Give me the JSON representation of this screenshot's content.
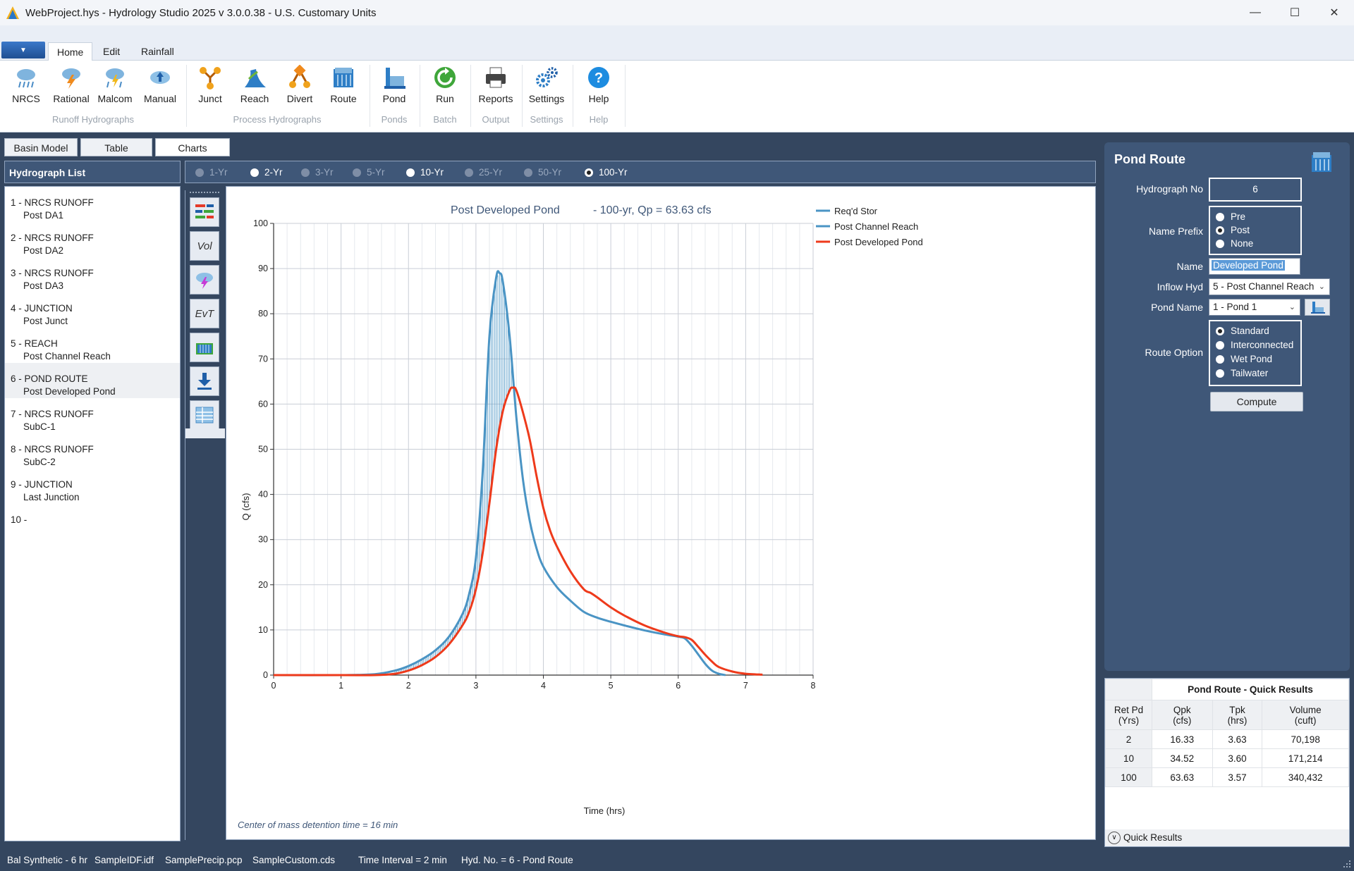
{
  "window": {
    "title": "WebProject.hys - Hydrology Studio 2025 v 3.0.0.38 - U.S. Customary Units",
    "minimize": "—",
    "maximize": "☐",
    "close": "✕"
  },
  "ribbon": {
    "tabs": [
      "Home",
      "Edit",
      "Rainfall"
    ],
    "buttons": {
      "nrcs": "NRCS",
      "rational": "Rational",
      "malcom": "Malcom",
      "manual": "Manual",
      "junct": "Junct",
      "reach": "Reach",
      "divert": "Divert",
      "route": "Route",
      "pond": "Pond",
      "run": "Run",
      "reports": "Reports",
      "settings": "Settings",
      "help": "Help"
    },
    "groups": {
      "runoff": "Runoff Hydrographs",
      "process": "Process Hydrographs",
      "ponds": "Ponds",
      "batch": "Batch",
      "output": "Output",
      "settings": "Settings",
      "help": "Help"
    }
  },
  "view_tabs": [
    "Basin Model",
    "Table",
    "Charts"
  ],
  "hydrograph_list": {
    "title": "Hydrograph List",
    "items": [
      {
        "line1": "1 - NRCS RUNOFF",
        "line2": "Post DA1"
      },
      {
        "line1": "2 - NRCS RUNOFF",
        "line2": "Post DA2"
      },
      {
        "line1": "3 - NRCS RUNOFF",
        "line2": "Post DA3"
      },
      {
        "line1": "4 - JUNCTION",
        "line2": "Post Junct"
      },
      {
        "line1": "5 - REACH",
        "line2": "Post Channel Reach"
      },
      {
        "line1": "6 - POND ROUTE",
        "line2": "Post Developed Pond"
      },
      {
        "line1": "7 - NRCS RUNOFF",
        "line2": "SubC-1"
      },
      {
        "line1": "8 - NRCS RUNOFF",
        "line2": "SubC-2"
      },
      {
        "line1": "9 - JUNCTION",
        "line2": "Last Junction"
      },
      {
        "line1": "10 -",
        "line2": ""
      }
    ]
  },
  "return_periods": [
    {
      "label": "1-Yr",
      "state": "off"
    },
    {
      "label": "2-Yr",
      "state": "on"
    },
    {
      "label": "3-Yr",
      "state": "off"
    },
    {
      "label": "5-Yr",
      "state": "off"
    },
    {
      "label": "10-Yr",
      "state": "on"
    },
    {
      "label": "25-Yr",
      "state": "off"
    },
    {
      "label": "50-Yr",
      "state": "off"
    },
    {
      "label": "100-Yr",
      "state": "selected"
    }
  ],
  "chart_toolbar": {
    "vol": "Vol",
    "evt": "EvT"
  },
  "chart_data": {
    "type": "line",
    "title": "Post Developed Pond",
    "subtitle": "- 100-yr, Qp = 63.63 cfs",
    "xlabel": "Time (hrs)",
    "ylabel": "Q (cfs)",
    "xlim": [
      0,
      8
    ],
    "ylim": [
      0,
      100
    ],
    "xticks": [
      0,
      1,
      2,
      3,
      4,
      5,
      6,
      7,
      8
    ],
    "yticks": [
      0,
      10,
      20,
      30,
      40,
      50,
      60,
      70,
      80,
      90,
      100
    ],
    "grid": true,
    "legend_position": "top-right",
    "annotation": "Center of mass detention time = 16 min",
    "series": [
      {
        "name": "Req'd Stor",
        "color": "#4a94c4",
        "values": []
      },
      {
        "name": "Post Channel Reach",
        "color": "#4a94c4",
        "x": [
          0,
          1,
          1.5,
          1.8,
          2,
          2.2,
          2.4,
          2.6,
          2.8,
          2.9,
          3.0,
          3.1,
          3.2,
          3.3,
          3.35,
          3.4,
          3.5,
          3.6,
          3.7,
          3.8,
          3.9,
          4.0,
          4.2,
          4.4,
          4.6,
          4.8,
          5.0,
          5.2,
          5.5,
          5.8,
          6.0,
          6.1,
          6.2,
          6.3,
          6.4,
          6.5,
          6.6,
          6.7
        ],
        "values": [
          0,
          0,
          0.2,
          1.0,
          2.0,
          3.5,
          5.5,
          8.5,
          13.5,
          18,
          26,
          45,
          75,
          88,
          89,
          87,
          75,
          57,
          43,
          34,
          28,
          24,
          19.5,
          16.5,
          14,
          12.7,
          11.8,
          11,
          9.9,
          9,
          8.5,
          8.1,
          6.5,
          4.5,
          2.5,
          1.0,
          0.3,
          0
        ]
      },
      {
        "name": "Post Developed Pond",
        "color": "#ee3a1b",
        "x": [
          0,
          1,
          1.5,
          1.8,
          2,
          2.2,
          2.4,
          2.6,
          2.8,
          2.9,
          3.0,
          3.1,
          3.2,
          3.3,
          3.4,
          3.5,
          3.55,
          3.6,
          3.7,
          3.8,
          3.9,
          4.0,
          4.1,
          4.2,
          4.4,
          4.6,
          4.7,
          4.8,
          5.0,
          5.2,
          5.5,
          5.8,
          6.0,
          6.1,
          6.2,
          6.3,
          6.4,
          6.5,
          6.6,
          6.8,
          7.0,
          7.25
        ],
        "values": [
          0,
          0,
          0,
          0.3,
          1.0,
          2.2,
          4.0,
          6.8,
          11,
          14,
          19,
          27,
          38,
          50,
          58.5,
          63,
          63.63,
          63,
          58,
          52,
          44,
          37,
          32,
          28.5,
          23,
          19,
          18.2,
          17.2,
          15,
          13.2,
          11,
          9.4,
          8.6,
          8.4,
          7.8,
          6.2,
          4.5,
          3.0,
          1.8,
          0.8,
          0.3,
          0.1
        ]
      }
    ]
  },
  "pond_route": {
    "title": "Pond Route",
    "hyd_no_label": "Hydrograph No",
    "hyd_no": "6",
    "name_prefix_label": "Name Prefix",
    "prefix_options": [
      "Pre",
      "Post",
      "None"
    ],
    "prefix_selected": 1,
    "name_label": "Name",
    "name_value": "Developed Pond",
    "inflow_label": "Inflow Hyd",
    "inflow_value": "5 - Post Channel Reach",
    "pond_name_label": "Pond Name",
    "pond_name_value": "1 - Pond 1",
    "route_option_label": "Route Option",
    "route_options": [
      "Standard",
      "Interconnected",
      "Wet Pond",
      "Tailwater"
    ],
    "route_selected": 0,
    "compute": "Compute"
  },
  "quick_results": {
    "title": "Pond Route - Quick Results",
    "headers": [
      {
        "l1": "Ret Pd",
        "l2": "(Yrs)"
      },
      {
        "l1": "Qpk",
        "l2": "(cfs)"
      },
      {
        "l1": "Tpk",
        "l2": "(hrs)"
      },
      {
        "l1": "Volume",
        "l2": "(cuft)"
      }
    ],
    "rows": [
      [
        "2",
        "16.33",
        "3.63",
        "70,198"
      ],
      [
        "10",
        "34.52",
        "3.60",
        "171,214"
      ],
      [
        "100",
        "63.63",
        "3.57",
        "340,432"
      ]
    ],
    "footer": "Quick Results"
  },
  "status": {
    "storm": "Bal Synthetic - 6 hr",
    "idf": "SampleIDF.idf",
    "precip": "SamplePrecip.pcp",
    "custom": "SampleCustom.cds",
    "interval": "Time Interval = 2 min",
    "hyd": "Hyd. No. = 6 - Pond Route"
  }
}
